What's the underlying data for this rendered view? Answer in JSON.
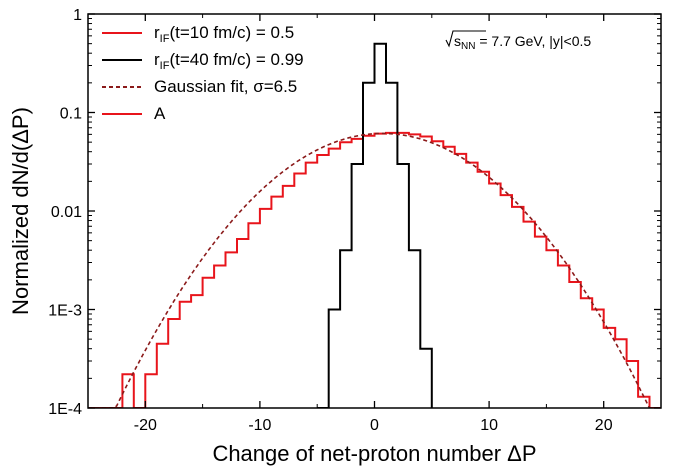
{
  "chart_data": {
    "type": "line",
    "xlabel": "Change of net-proton number  ΔP",
    "ylabel": "Normalized dN/d(ΔP)",
    "xlim": [
      -25,
      25
    ],
    "ylim": [
      0.0001,
      1
    ],
    "yscale": "log",
    "grid": false,
    "legend_placement": "top-left",
    "xticks": [
      {
        "value": -20,
        "label": "-20"
      },
      {
        "value": -10,
        "label": "-10"
      },
      {
        "value": 0,
        "label": "0"
      },
      {
        "value": 10,
        "label": "10"
      },
      {
        "value": 20,
        "label": "20"
      }
    ],
    "yticks": [
      {
        "value": 1,
        "label": "1"
      },
      {
        "value": 0.1,
        "label": "0.1"
      },
      {
        "value": 0.01,
        "label": "0.01"
      },
      {
        "value": 0.001,
        "label": "1E-3"
      },
      {
        "value": 0.0001,
        "label": "1E-4"
      }
    ],
    "annotation": {
      "sqrt_label": "s",
      "subscript": "NN",
      "rest": " = 7.7 GeV, |y|<0.5"
    },
    "legend": [
      {
        "pre": "r",
        "sub": "IF",
        "post": "(t=10 fm/c) = 0.5",
        "color": "#e8141b",
        "style": "solid"
      },
      {
        "pre": "r",
        "sub": "IF",
        "post": "(t=40 fm/c) = 0.99",
        "color": "#000000",
        "style": "solid"
      },
      {
        "pre": "",
        "sub": "",
        "post": "Gaussian fit,  σ=6.5",
        "color": "#8b1a1a",
        "style": "dashed"
      },
      {
        "pre": "",
        "sub": "",
        "post": "A",
        "color": "#e8141b",
        "style": "solid"
      }
    ],
    "series": [
      {
        "color": "#e8141b",
        "style": "step",
        "x": [
          -25,
          -24,
          -23,
          -22,
          -21,
          -20,
          -19,
          -18,
          -17,
          -16,
          -15,
          -14,
          -13,
          -12,
          -11,
          -10,
          -9,
          -8,
          -7,
          -6,
          -5,
          -4,
          -3,
          -2,
          -1,
          0,
          1,
          2,
          3,
          4,
          5,
          6,
          7,
          8,
          9,
          10,
          11,
          12,
          13,
          14,
          15,
          16,
          17,
          18,
          19,
          20,
          21,
          22,
          23,
          24
        ],
        "y": [
          0.0001,
          0.0001,
          0.0001,
          0.00022,
          0.0001,
          0.00022,
          0.00045,
          0.0008,
          0.0012,
          0.0014,
          0.0021,
          0.0028,
          0.0038,
          0.0052,
          0.0075,
          0.0105,
          0.014,
          0.018,
          0.024,
          0.031,
          0.037,
          0.043,
          0.05,
          0.054,
          0.058,
          0.061,
          0.062,
          0.062,
          0.06,
          0.057,
          0.051,
          0.045,
          0.038,
          0.031,
          0.025,
          0.019,
          0.0145,
          0.011,
          0.0078,
          0.0055,
          0.004,
          0.0028,
          0.0019,
          0.0013,
          0.001,
          0.00065,
          0.0005,
          0.0003,
          0.00013,
          0.0001
        ]
      },
      {
        "color": "#000000",
        "style": "step",
        "x": [
          -5,
          -4,
          -3,
          -2,
          -1,
          0,
          1,
          2,
          3,
          4
        ],
        "y": [
          0.0001,
          0.001,
          0.004,
          0.03,
          0.2,
          0.5,
          0.2,
          0.03,
          0.004,
          0.0004
        ]
      },
      {
        "color": "#8b1a1a",
        "style": "dashed",
        "gauss": {
          "amplitude": 0.0613,
          "mean": 0.7,
          "sigma": 6.5
        }
      }
    ]
  }
}
